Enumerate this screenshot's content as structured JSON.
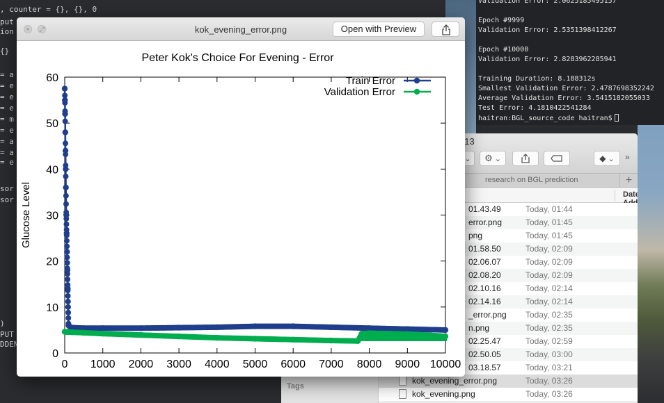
{
  "editor": {
    "lines": [
      {
        "text": ", counter = {}, {}, 0",
        "y": 14
      },
      {
        "text": "put",
        "y": 32
      },
      {
        "text": "ion",
        "y": 46
      },
      {
        "text": "{}",
        "y": 74
      },
      {
        "text": "= a",
        "y": 108
      },
      {
        "text": "= e",
        "y": 124
      },
      {
        "text": "= e",
        "y": 140
      },
      {
        "text": "= e",
        "y": 156
      },
      {
        "text": "= m",
        "y": 172
      },
      {
        "text": "= e",
        "y": 188
      },
      {
        "text": "= a",
        "y": 204
      },
      {
        "text": "= a",
        "y": 220
      },
      {
        "text": "= e",
        "y": 234
      },
      {
        "text": "sor",
        "y": 272
      },
      {
        "text": "sor",
        "y": 288
      },
      {
        "text": ")",
        "y": 466
      },
      {
        "text": "PUT",
        "y": 482
      },
      {
        "text": "DDEN",
        "y": 496
      }
    ]
  },
  "terminal": {
    "lines": [
      "Validation Error: 2.0625185495157",
      "",
      "Epoch #9999",
      "Validation Error: 2.5351398412267",
      "",
      "Epoch #10000",
      "Validation Error: 2.8283962285941",
      "",
      "Training Duration: 8.188312s",
      "Smallest Validation Error: 2.4787698352242",
      "Average Validation Error: 3.5415182055033",
      "Test Error: 4.1810422541284",
      "haitran:BGL_source_code haitran$"
    ]
  },
  "finder": {
    "title_fragment": ": 13",
    "tab_label": "research on BGL prediction",
    "column_header": "Date Added",
    "sidebar_section": "Tags",
    "files": [
      {
        "name": "01.43.49",
        "date": "Today, 01:44"
      },
      {
        "name": "error.png",
        "date": "Today, 01:45"
      },
      {
        "name": "png",
        "date": "Today, 01:45"
      },
      {
        "name": "01.58.50",
        "date": "Today, 02:09"
      },
      {
        "name": "02.06.07",
        "date": "Today, 02:09"
      },
      {
        "name": "02.08.20",
        "date": "Today, 02:09"
      },
      {
        "name": "02.10.16",
        "date": "Today, 02:14"
      },
      {
        "name": "02.14.16",
        "date": "Today, 02:14"
      },
      {
        "name": "_error.png",
        "date": "Today, 02:35"
      },
      {
        "name": "n.png",
        "date": "Today, 02:35"
      },
      {
        "name": "02.25.47",
        "date": "Today, 02:59"
      },
      {
        "name": "02.50.05",
        "date": "Today, 03:00"
      },
      {
        "name": "03.18.57",
        "date": "Today, 03:21"
      },
      {
        "name": "kok_evening_error.png",
        "date": "Today, 03:26",
        "selected": true,
        "icon": true
      },
      {
        "name": "kok_evening.png",
        "date": "Today, 03:26",
        "icon": true
      }
    ]
  },
  "preview": {
    "title": "kok_evening_error.png",
    "open_button": "Open with Preview"
  },
  "chart_data": {
    "type": "line",
    "title": "Peter Kok's Choice For Evening - Error",
    "xlabel": "",
    "ylabel": "Glucose Level",
    "xlim": [
      0,
      10000
    ],
    "ylim": [
      0,
      60
    ],
    "xticks": [
      0,
      1000,
      2000,
      3000,
      4000,
      5000,
      6000,
      7000,
      8000,
      9000,
      10000
    ],
    "yticks": [
      0,
      10,
      20,
      30,
      40,
      50,
      60
    ],
    "legend": "top-right",
    "series": [
      {
        "name": "Train Error",
        "color": "#1f3f8c",
        "x": [
          0,
          5,
          10,
          15,
          20,
          25,
          30,
          40,
          50,
          60,
          70,
          80,
          100,
          150,
          200,
          500,
          1000,
          2000,
          3000,
          4000,
          5000,
          6000,
          7000,
          8000,
          9000,
          10000
        ],
        "y": [
          57.5,
          55,
          52,
          48,
          44,
          40,
          36,
          30,
          26,
          22,
          18,
          14,
          6,
          5.6,
          5.5,
          5.4,
          5.4,
          5.4,
          5.5,
          5.6,
          5.8,
          5.8,
          5.6,
          5.4,
          5.2,
          5.0
        ]
      },
      {
        "name": "Validation Error",
        "color": "#00ad4e",
        "x": [
          0,
          200,
          500,
          1000,
          2000,
          3000,
          4000,
          5000,
          6000,
          7000,
          7700,
          7800,
          8000,
          8500,
          9000,
          9500,
          10000
        ],
        "y": [
          4.6,
          4.5,
          4.4,
          4.2,
          3.9,
          3.6,
          3.3,
          3.1,
          2.9,
          2.7,
          2.6,
          4.2,
          4.3,
          4.2,
          4.1,
          3.9,
          3.6
        ]
      }
    ]
  }
}
